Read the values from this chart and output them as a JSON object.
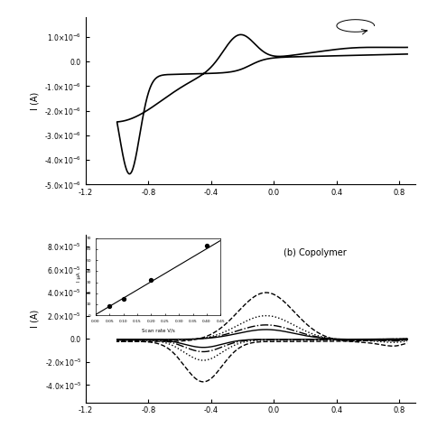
{
  "top_plot": {
    "ylabel": "I (A)",
    "xlim": [
      -1.2,
      0.9
    ],
    "ylim": [
      -5e-06,
      1.8e-06
    ],
    "yticks": [
      1e-06,
      0.0,
      -1e-06,
      -2e-06,
      -3e-06,
      -4e-06,
      -5e-06
    ],
    "xticks": [
      -1.2,
      -0.8,
      -0.4,
      0.0,
      0.4,
      0.8
    ],
    "color": "black",
    "linewidth": 1.2
  },
  "bottom_plot": {
    "ylabel": "I (A)",
    "xlim": [
      -1.2,
      0.9
    ],
    "ylim": [
      -5.5e-05,
      9e-05
    ],
    "yticks": [
      8e-05,
      6e-05,
      4e-05,
      2e-05,
      0.0,
      -2e-05,
      -4e-05
    ],
    "xticks": [
      -1.2,
      -0.8,
      -0.4,
      0.0,
      0.4,
      0.8
    ],
    "annotation": "(b) Copolymer"
  },
  "inset": {
    "xlabel": "Scan rate V/s",
    "ylabel": "I µA",
    "xlim": [
      0.0,
      0.45
    ],
    "ylim": [
      0,
      70
    ],
    "xticks": [
      0.0,
      0.05,
      0.1,
      0.15,
      0.2,
      0.25,
      0.3,
      0.35,
      0.4,
      0.45
    ],
    "yticks": [
      0,
      10,
      20,
      30,
      40,
      50,
      60,
      70
    ],
    "scatter_x": [
      0.05,
      0.1,
      0.2,
      0.4
    ],
    "scatter_y": [
      8,
      15,
      32,
      63
    ],
    "line_x": [
      0.0,
      0.45
    ],
    "line_y": [
      0.5,
      68
    ]
  },
  "background_color": "white"
}
